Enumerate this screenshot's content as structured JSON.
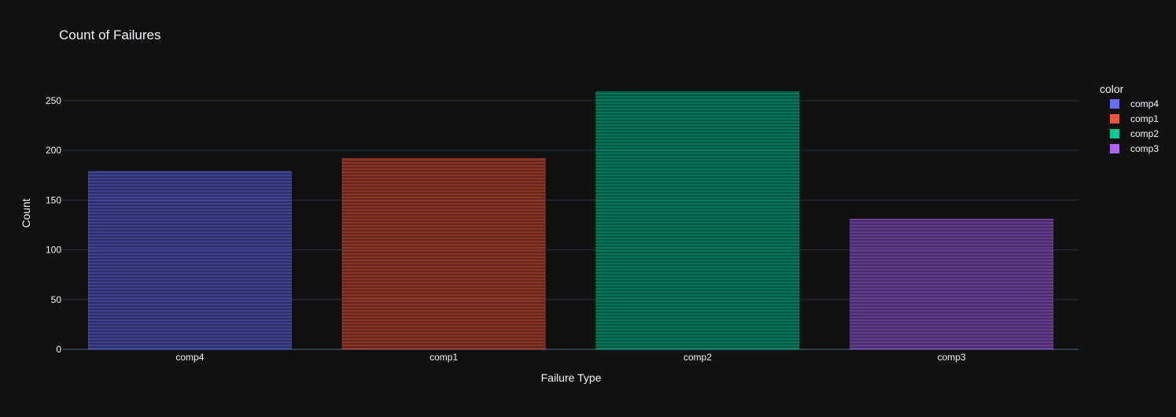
{
  "chart_data": {
    "type": "bar",
    "title": "Count of Failures",
    "xlabel": "Failure Type",
    "ylabel": "Count",
    "categories": [
      "comp4",
      "comp1",
      "comp2",
      "comp3"
    ],
    "values": [
      179,
      192,
      259,
      131
    ],
    "colors": [
      "#636efa",
      "#EF553B",
      "#00cc96",
      "#ab63fa"
    ],
    "ylim": [
      0,
      272
    ],
    "yticks": [
      0,
      50,
      100,
      150,
      200,
      250
    ],
    "grid": true,
    "legend": {
      "title": "color",
      "placement": "right",
      "items": [
        "comp4",
        "comp1",
        "comp2",
        "comp3"
      ]
    },
    "background": "#111111"
  }
}
